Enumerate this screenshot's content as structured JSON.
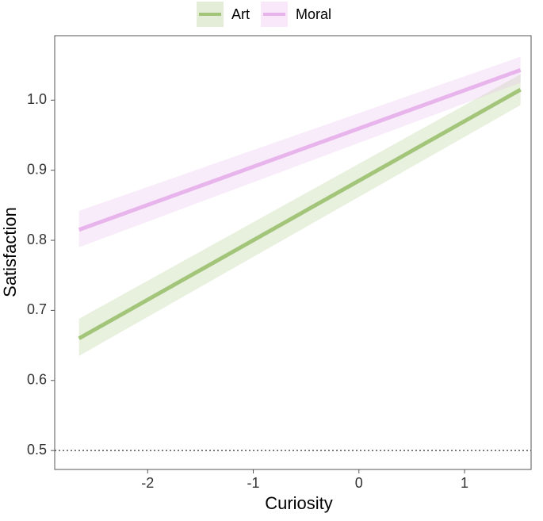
{
  "chart_data": {
    "type": "line",
    "x_label": "Curiosity",
    "y_label": "Satisfaction",
    "legend": "top",
    "xlim": [
      -2.88,
      1.63
    ],
    "xticks": [
      -2,
      -1,
      0,
      1
    ],
    "ylim": [
      0.473,
      1.092
    ],
    "yticks": [
      0.5,
      0.6,
      0.7,
      0.8,
      0.9,
      {
        "value": 1,
        "label": "1.0"
      }
    ],
    "hline": 0.5,
    "series": [
      {
        "name": "Art",
        "color": "#a3c57a",
        "x": [
          -2.65,
          1.53
        ],
        "values": [
          0.66,
          1.015
        ],
        "lower": [
          0.635,
          0.993
        ],
        "upper": [
          0.688,
          1.037
        ]
      },
      {
        "name": "Moral",
        "color": "#e8b4ec",
        "x": [
          -2.65,
          1.53
        ],
        "values": [
          0.815,
          1.043
        ],
        "lower": [
          0.79,
          1.025
        ],
        "upper": [
          0.842,
          1.062
        ]
      }
    ]
  }
}
